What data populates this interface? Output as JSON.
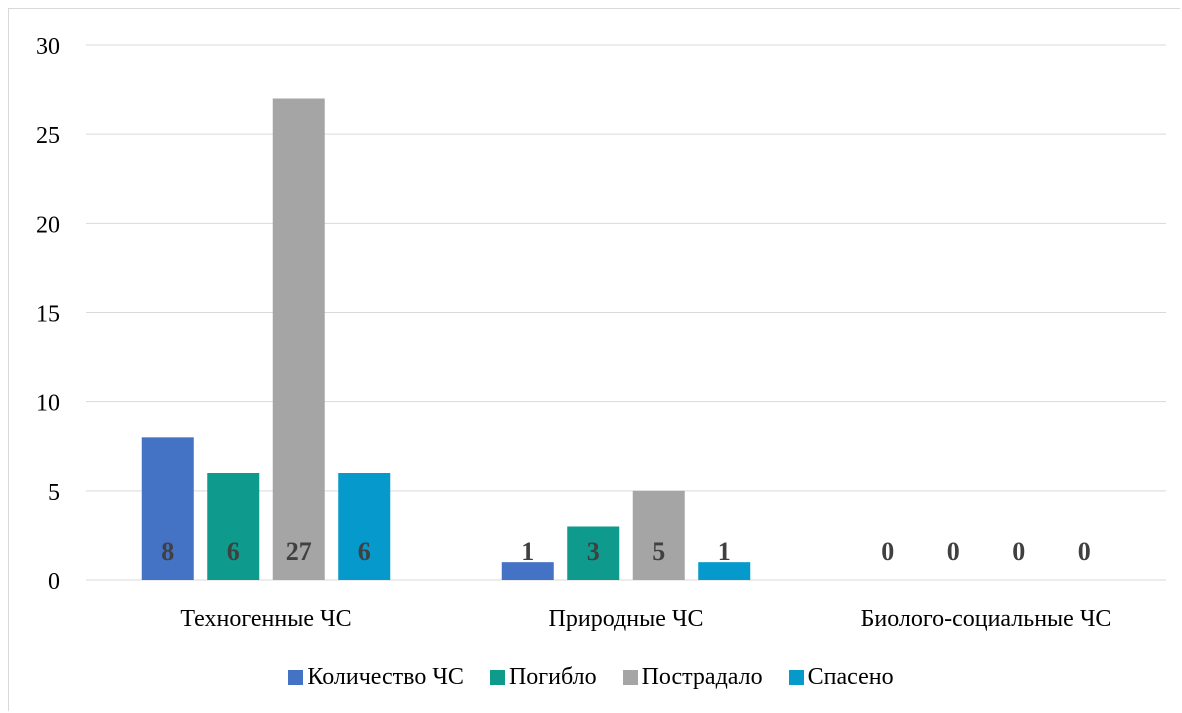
{
  "chart_data": {
    "type": "bar",
    "categories": [
      "Техногенные ЧС",
      "Природные ЧС",
      "Биолого-социальные ЧС"
    ],
    "series": [
      {
        "name": "Количество ЧС",
        "values": [
          8,
          1,
          0
        ],
        "color": "#4472c4"
      },
      {
        "name": "Погибло",
        "values": [
          6,
          3,
          0
        ],
        "color": "#0e9a8c"
      },
      {
        "name": "Пострадало",
        "values": [
          27,
          5,
          0
        ],
        "color": "#a5a5a5"
      },
      {
        "name": "Спасено",
        "values": [
          6,
          1,
          0
        ],
        "color": "#0599cc"
      }
    ],
    "ylim": [
      0,
      30
    ],
    "yticks": [
      0,
      5,
      10,
      15,
      20,
      25,
      30
    ],
    "grid": true,
    "legend": "bottom",
    "data_labels": true
  }
}
